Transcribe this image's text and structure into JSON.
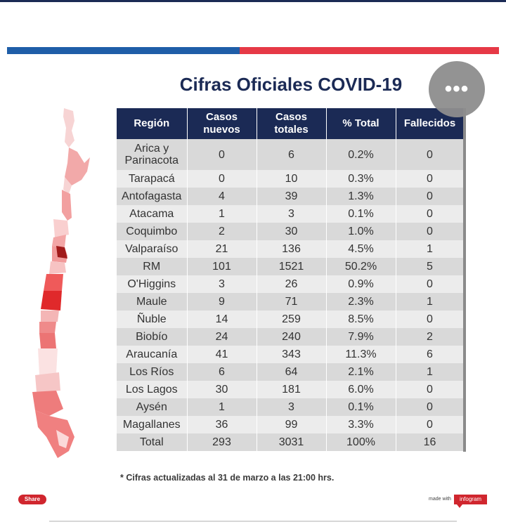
{
  "title": "Cifras Oficiales COVID-19",
  "menu_icon": "ellipsis-icon",
  "menu_label": "•••",
  "table": {
    "headers": [
      "Región",
      "Casos nuevos",
      "Casos totales",
      "% Total",
      "Fallecidos"
    ],
    "rows": [
      [
        "Arica y Parinacota",
        "0",
        "6",
        "0.2%",
        "0"
      ],
      [
        "Tarapacá",
        "0",
        "10",
        "0.3%",
        "0"
      ],
      [
        "Antofagasta",
        "4",
        "39",
        "1.3%",
        "0"
      ],
      [
        "Atacama",
        "1",
        "3",
        "0.1%",
        "0"
      ],
      [
        "Coquimbo",
        "2",
        "30",
        "1.0%",
        "0"
      ],
      [
        "Valparaíso",
        "21",
        "136",
        "4.5%",
        "1"
      ],
      [
        "RM",
        "101",
        "1521",
        "50.2%",
        "5"
      ],
      [
        "O'Higgins",
        "3",
        "26",
        "0.9%",
        "0"
      ],
      [
        "Maule",
        "9",
        "71",
        "2.3%",
        "1"
      ],
      [
        "Ñuble",
        "14",
        "259",
        "8.5%",
        "0"
      ],
      [
        "Biobío",
        "24",
        "240",
        "7.9%",
        "2"
      ],
      [
        "Araucanía",
        "41",
        "343",
        "11.3%",
        "6"
      ],
      [
        "Los Ríos",
        "6",
        "64",
        "2.1%",
        "1"
      ],
      [
        "Los Lagos",
        "30",
        "181",
        "6.0%",
        "0"
      ],
      [
        "Aysén",
        "1",
        "3",
        "0.1%",
        "0"
      ],
      [
        "Magallanes",
        "36",
        "99",
        "3.3%",
        "0"
      ],
      [
        "Total",
        "293",
        "3031",
        "100%",
        "16"
      ]
    ]
  },
  "note": "* Cifras actualizadas al 31 de marzo a las 21:00 hrs.",
  "share_label": "Share",
  "made_with": "made with",
  "infogram_label": "infogram",
  "colors": {
    "header": "#1b2a55",
    "row_dark": "#d9d9d9",
    "row_light": "#ececec",
    "flag_blue": "#1f5ea8",
    "flag_red": "#e63946",
    "brand_red": "#d0262e"
  }
}
